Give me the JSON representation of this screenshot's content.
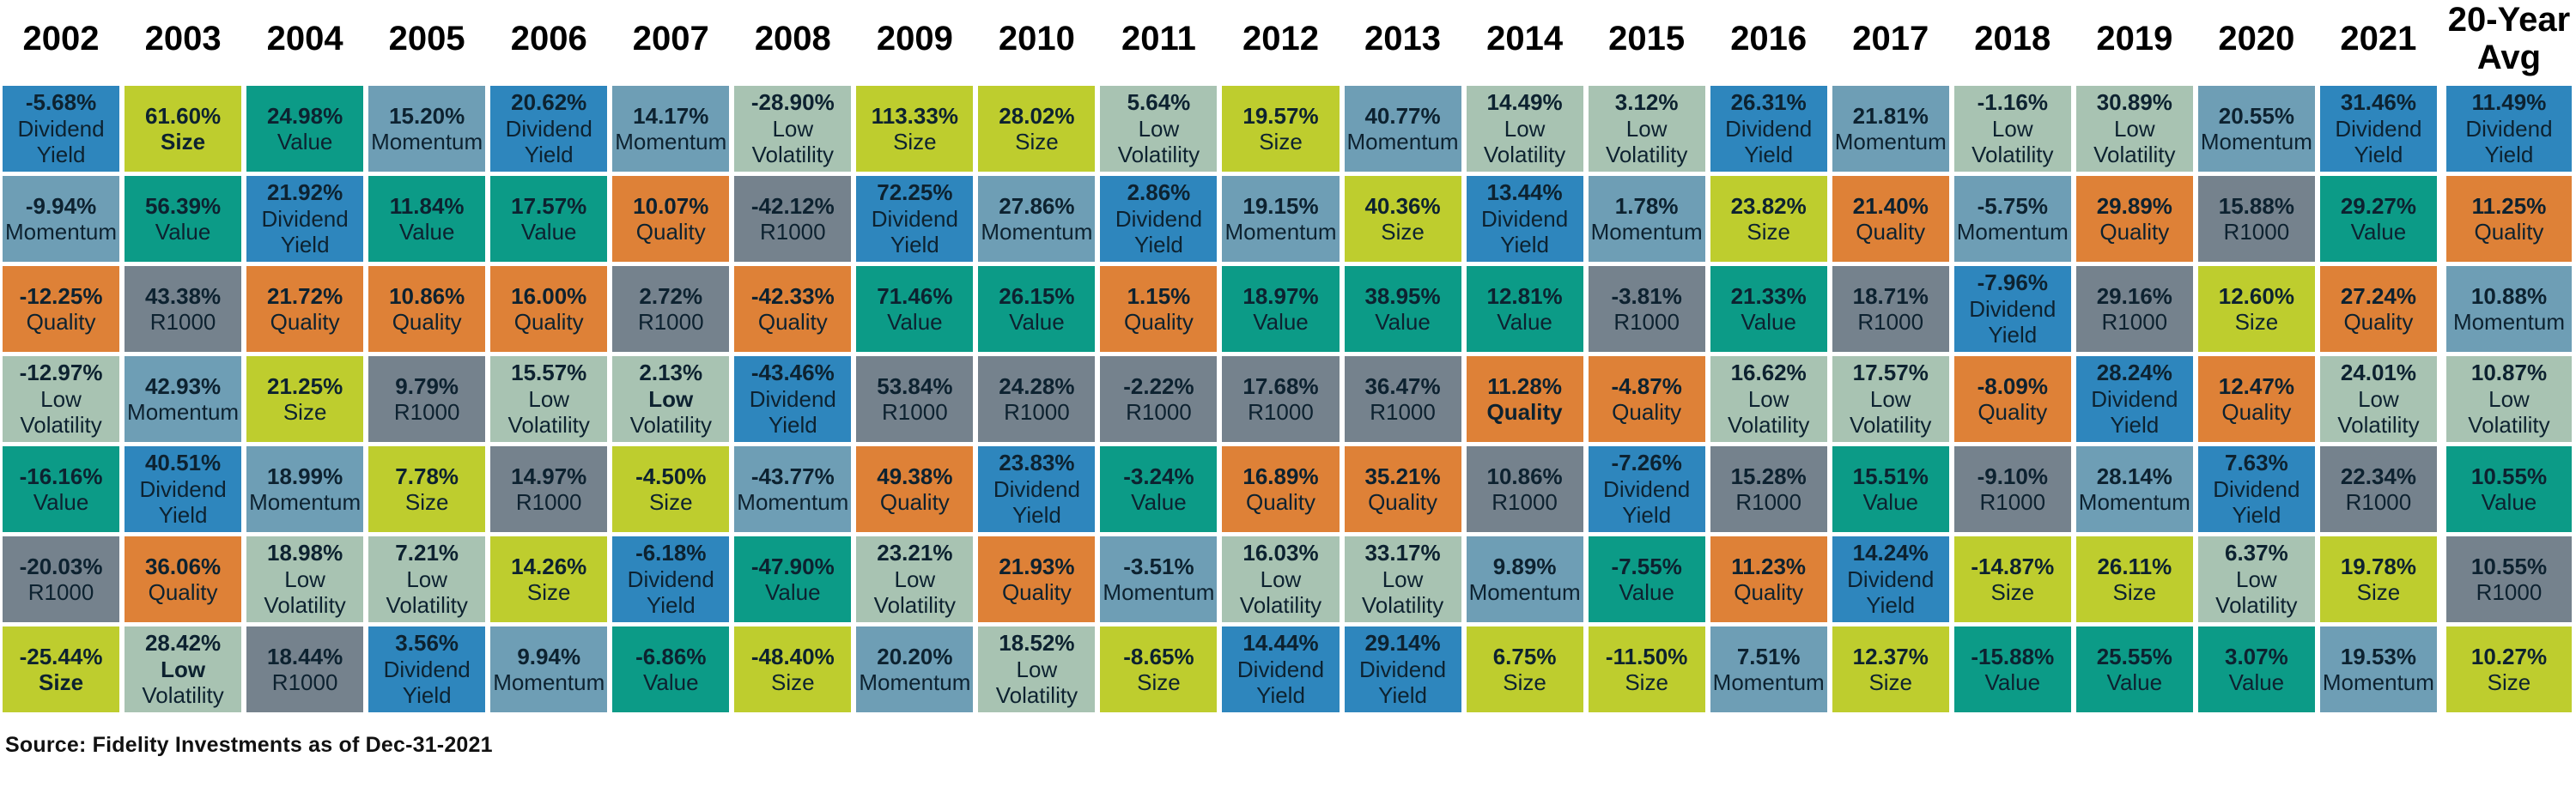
{
  "chart_data": {
    "type": "table",
    "title": "Annual factor returns ranked by year (periodic-table style)",
    "legend_position": "none",
    "grid": "white gaps between colored cells",
    "categories": [
      "2002",
      "2003",
      "2004",
      "2005",
      "2006",
      "2007",
      "2008",
      "2009",
      "2010",
      "2011",
      "2012",
      "2013",
      "2014",
      "2015",
      "2016",
      "2017",
      "2018",
      "2019",
      "2020",
      "2021",
      "20-Year Avg"
    ],
    "factors": [
      "Dividend Yield",
      "Quality",
      "Momentum",
      "Low Volatility",
      "Value",
      "R1000",
      "Size"
    ],
    "factor_colors": {
      "Dividend Yield": "#2e86bd",
      "Quality": "#de8137",
      "Momentum": "#6e9eb5",
      "Low Volatility": "#a8c3b2",
      "Value": "#0c9b87",
      "R1000": "#75828d",
      "Size": "#becd2e"
    },
    "text_color": "#0d2230",
    "source": "Source: Fidelity Investments as of Dec-31-2021",
    "columns": [
      {
        "year": "2002",
        "cells": [
          {
            "value": "-5.68%",
            "factor": "Dividend Yield"
          },
          {
            "value": "-9.94%",
            "factor": "Momentum"
          },
          {
            "value": "-12.25%",
            "factor": "Quality"
          },
          {
            "value": "-12.97%",
            "factor": "Low Volatility"
          },
          {
            "value": "-16.16%",
            "factor": "Value"
          },
          {
            "value": "-20.03%",
            "factor": "R1000"
          },
          {
            "value": "-25.44%",
            "factor": "Size",
            "bold": "all"
          }
        ]
      },
      {
        "year": "2003",
        "cells": [
          {
            "value": "61.60%",
            "factor": "Size",
            "bold": "all"
          },
          {
            "value": "56.39%",
            "factor": "Value"
          },
          {
            "value": "43.38%",
            "factor": "R1000"
          },
          {
            "value": "42.93%",
            "factor": "Momentum"
          },
          {
            "value": "40.51%",
            "factor": "Dividend Yield"
          },
          {
            "value": "36.06%",
            "factor": "Quality"
          },
          {
            "value": "28.42%",
            "factor": "Low Volatility",
            "bold": [
              "Low"
            ]
          }
        ]
      },
      {
        "year": "2004",
        "cells": [
          {
            "value": "24.98%",
            "factor": "Value"
          },
          {
            "value": "21.92%",
            "factor": "Dividend Yield"
          },
          {
            "value": "21.72%",
            "factor": "Quality"
          },
          {
            "value": "21.25%",
            "factor": "Size"
          },
          {
            "value": "18.99%",
            "factor": "Momentum"
          },
          {
            "value": "18.98%",
            "factor": "Low Volatility"
          },
          {
            "value": "18.44%",
            "factor": "R1000"
          }
        ]
      },
      {
        "year": "2005",
        "cells": [
          {
            "value": "15.20%",
            "factor": "Momentum"
          },
          {
            "value": "11.84%",
            "factor": "Value"
          },
          {
            "value": "10.86%",
            "factor": "Quality"
          },
          {
            "value": "9.79%",
            "factor": "R1000"
          },
          {
            "value": "7.78%",
            "factor": "Size"
          },
          {
            "value": "7.21%",
            "factor": "Low Volatility"
          },
          {
            "value": "3.56%",
            "factor": "Dividend Yield"
          }
        ]
      },
      {
        "year": "2006",
        "cells": [
          {
            "value": "20.62%",
            "factor": "Dividend Yield"
          },
          {
            "value": "17.57%",
            "factor": "Value"
          },
          {
            "value": "16.00%",
            "factor": "Quality"
          },
          {
            "value": "15.57%",
            "factor": "Low Volatility"
          },
          {
            "value": "14.97%",
            "factor": "R1000"
          },
          {
            "value": "14.26%",
            "factor": "Size"
          },
          {
            "value": "9.94%",
            "factor": "Momentum"
          }
        ]
      },
      {
        "year": "2007",
        "cells": [
          {
            "value": "14.17%",
            "factor": "Momentum"
          },
          {
            "value": "10.07%",
            "factor": "Quality"
          },
          {
            "value": "2.72%",
            "factor": "R1000"
          },
          {
            "value": "2.13%",
            "factor": "Low Volatility",
            "bold": [
              "Low"
            ]
          },
          {
            "value": "-4.50%",
            "factor": "Size"
          },
          {
            "value": "-6.18%",
            "factor": "Dividend Yield"
          },
          {
            "value": "-6.86%",
            "factor": "Value"
          }
        ]
      },
      {
        "year": "2008",
        "cells": [
          {
            "value": "-28.90%",
            "factor": "Low Volatility"
          },
          {
            "value": "-42.12%",
            "factor": "R1000"
          },
          {
            "value": "-42.33%",
            "factor": "Quality"
          },
          {
            "value": "-43.46%",
            "factor": "Dividend Yield"
          },
          {
            "value": "-43.77%",
            "factor": "Momentum"
          },
          {
            "value": "-47.90%",
            "factor": "Value"
          },
          {
            "value": "-48.40%",
            "factor": "Size"
          }
        ]
      },
      {
        "year": "2009",
        "cells": [
          {
            "value": "113.33%",
            "factor": "Size"
          },
          {
            "value": "72.25%",
            "factor": "Dividend Yield"
          },
          {
            "value": "71.46%",
            "factor": "Value"
          },
          {
            "value": "53.84%",
            "factor": "R1000"
          },
          {
            "value": "49.38%",
            "factor": "Quality"
          },
          {
            "value": "23.21%",
            "factor": "Low Volatility"
          },
          {
            "value": "20.20%",
            "factor": "Momentum"
          }
        ]
      },
      {
        "year": "2010",
        "cells": [
          {
            "value": "28.02%",
            "factor": "Size"
          },
          {
            "value": "27.86%",
            "factor": "Momentum"
          },
          {
            "value": "26.15%",
            "factor": "Value"
          },
          {
            "value": "24.28%",
            "factor": "R1000"
          },
          {
            "value": "23.83%",
            "factor": "Dividend Yield"
          },
          {
            "value": "21.93%",
            "factor": "Quality"
          },
          {
            "value": "18.52%",
            "factor": "Low Volatility"
          }
        ]
      },
      {
        "year": "2011",
        "cells": [
          {
            "value": "5.64%",
            "factor": "Low Volatility"
          },
          {
            "value": "2.86%",
            "factor": "Dividend Yield"
          },
          {
            "value": "1.15%",
            "factor": "Quality"
          },
          {
            "value": "-2.22%",
            "factor": "R1000"
          },
          {
            "value": "-3.24%",
            "factor": "Value"
          },
          {
            "value": "-3.51%",
            "factor": "Momentum"
          },
          {
            "value": "-8.65%",
            "factor": "Size"
          }
        ]
      },
      {
        "year": "2012",
        "cells": [
          {
            "value": "19.57%",
            "factor": "Size"
          },
          {
            "value": "19.15%",
            "factor": "Momentum"
          },
          {
            "value": "18.97%",
            "factor": "Value"
          },
          {
            "value": "17.68%",
            "factor": "R1000"
          },
          {
            "value": "16.89%",
            "factor": "Quality"
          },
          {
            "value": "16.03%",
            "factor": "Low Volatility"
          },
          {
            "value": "14.44%",
            "factor": "Dividend Yield"
          }
        ]
      },
      {
        "year": "2013",
        "cells": [
          {
            "value": "40.77%",
            "factor": "Momentum"
          },
          {
            "value": "40.36%",
            "factor": "Size"
          },
          {
            "value": "38.95%",
            "factor": "Value"
          },
          {
            "value": "36.47%",
            "factor": "R1000"
          },
          {
            "value": "35.21%",
            "factor": "Quality"
          },
          {
            "value": "33.17%",
            "factor": "Low Volatility"
          },
          {
            "value": "29.14%",
            "factor": "Dividend Yield"
          }
        ]
      },
      {
        "year": "2014",
        "cells": [
          {
            "value": "14.49%",
            "factor": "Low Volatility"
          },
          {
            "value": "13.44%",
            "factor": "Dividend Yield"
          },
          {
            "value": "12.81%",
            "factor": "Value"
          },
          {
            "value": "11.28%",
            "factor": "Quality",
            "bold": "all"
          },
          {
            "value": "10.86%",
            "factor": "R1000"
          },
          {
            "value": "9.89%",
            "factor": "Momentum"
          },
          {
            "value": "6.75%",
            "factor": "Size"
          }
        ]
      },
      {
        "year": "2015",
        "cells": [
          {
            "value": "3.12%",
            "factor": "Low Volatility"
          },
          {
            "value": "1.78%",
            "factor": "Momentum"
          },
          {
            "value": "-3.81%",
            "factor": "R1000"
          },
          {
            "value": "-4.87%",
            "factor": "Quality"
          },
          {
            "value": "-7.26%",
            "factor": "Dividend Yield"
          },
          {
            "value": "-7.55%",
            "factor": "Value"
          },
          {
            "value": "-11.50%",
            "factor": "Size"
          }
        ]
      },
      {
        "year": "2016",
        "cells": [
          {
            "value": "26.31%",
            "factor": "Dividend Yield"
          },
          {
            "value": "23.82%",
            "factor": "Size"
          },
          {
            "value": "21.33%",
            "factor": "Value"
          },
          {
            "value": "16.62%",
            "factor": "Low Volatility"
          },
          {
            "value": "15.28%",
            "factor": "R1000"
          },
          {
            "value": "11.23%",
            "factor": "Quality"
          },
          {
            "value": "7.51%",
            "factor": "Momentum"
          }
        ]
      },
      {
        "year": "2017",
        "cells": [
          {
            "value": "21.81%",
            "factor": "Momentum"
          },
          {
            "value": "21.40%",
            "factor": "Quality"
          },
          {
            "value": "18.71%",
            "factor": "R1000"
          },
          {
            "value": "17.57%",
            "factor": "Low Volatility"
          },
          {
            "value": "15.51%",
            "factor": "Value"
          },
          {
            "value": "14.24%",
            "factor": "Dividend Yield"
          },
          {
            "value": "12.37%",
            "factor": "Size"
          }
        ]
      },
      {
        "year": "2018",
        "cells": [
          {
            "value": "-1.16%",
            "factor": "Low Volatility"
          },
          {
            "value": "-5.75%",
            "factor": "Momentum"
          },
          {
            "value": "-7.96%",
            "factor": "Dividend Yield"
          },
          {
            "value": "-8.09%",
            "factor": "Quality"
          },
          {
            "value": "-9.10%",
            "factor": "R1000"
          },
          {
            "value": "-14.87%",
            "factor": "Size"
          },
          {
            "value": "-15.88%",
            "factor": "Value"
          }
        ]
      },
      {
        "year": "2019",
        "cells": [
          {
            "value": "30.89%",
            "factor": "Low Volatility"
          },
          {
            "value": "29.89%",
            "factor": "Quality"
          },
          {
            "value": "29.16%",
            "factor": "R1000"
          },
          {
            "value": "28.24%",
            "factor": "Dividend Yield"
          },
          {
            "value": "28.14%",
            "factor": "Momentum"
          },
          {
            "value": "26.11%",
            "factor": "Size"
          },
          {
            "value": "25.55%",
            "factor": "Value"
          }
        ]
      },
      {
        "year": "2020",
        "cells": [
          {
            "value": "20.55%",
            "factor": "Momentum"
          },
          {
            "value": "15.88%",
            "factor": "R1000"
          },
          {
            "value": "12.60%",
            "factor": "Size"
          },
          {
            "value": "12.47%",
            "factor": "Quality"
          },
          {
            "value": "7.63%",
            "factor": "Dividend Yield"
          },
          {
            "value": "6.37%",
            "factor": "Low Volatility"
          },
          {
            "value": "3.07%",
            "factor": "Value"
          }
        ]
      },
      {
        "year": "2021",
        "cells": [
          {
            "value": "31.46%",
            "factor": "Dividend Yield"
          },
          {
            "value": "29.27%",
            "factor": "Value"
          },
          {
            "value": "27.24%",
            "factor": "Quality"
          },
          {
            "value": "24.01%",
            "factor": "Low Volatility"
          },
          {
            "value": "22.34%",
            "factor": "R1000"
          },
          {
            "value": "19.78%",
            "factor": "Size"
          },
          {
            "value": "19.53%",
            "factor": "Momentum"
          }
        ]
      },
      {
        "year": "20-Year Avg",
        "cells": [
          {
            "value": "11.49%",
            "factor": "Dividend Yield"
          },
          {
            "value": "11.25%",
            "factor": "Quality"
          },
          {
            "value": "10.88%",
            "factor": "Momentum"
          },
          {
            "value": "10.87%",
            "factor": "Low Volatility"
          },
          {
            "value": "10.55%",
            "factor": "Value"
          },
          {
            "value": "10.55%",
            "factor": "R1000"
          },
          {
            "value": "10.27%",
            "factor": "Size"
          }
        ]
      }
    ]
  }
}
